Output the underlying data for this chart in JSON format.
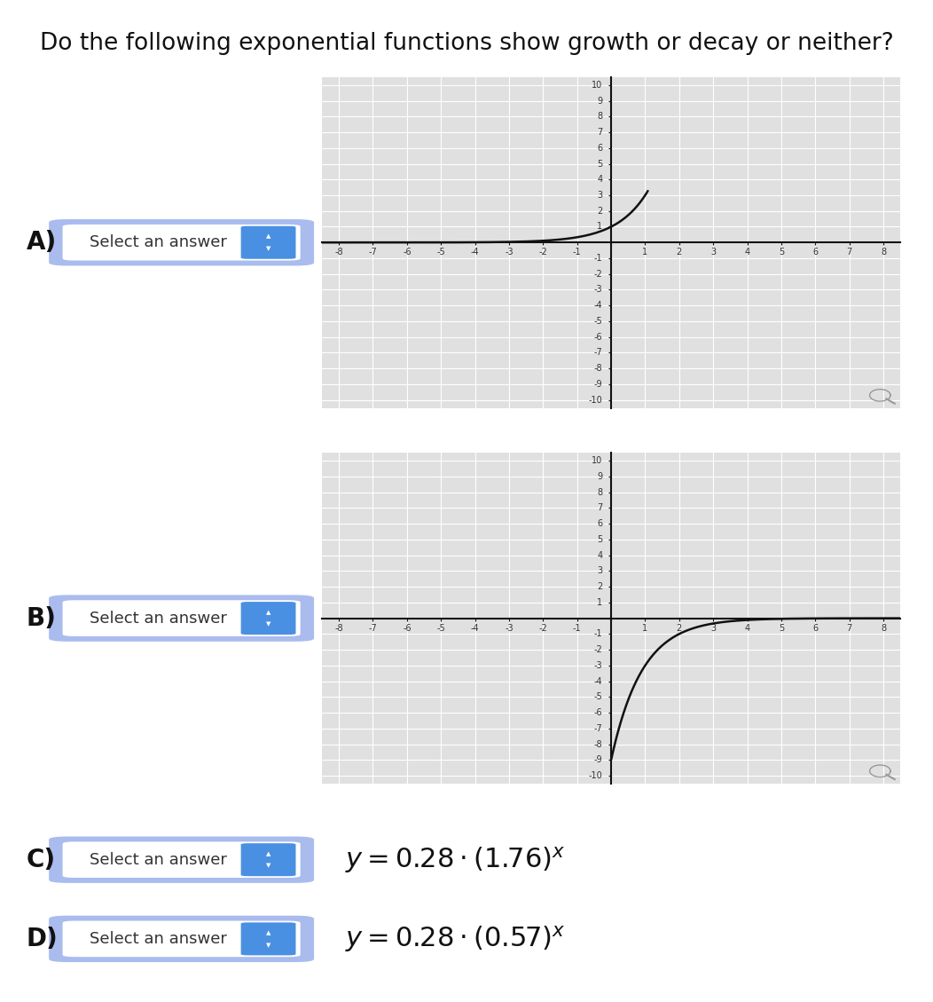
{
  "title": "Do the following exponential functions show growth or decay or neither?",
  "title_fontsize": 19,
  "bg_color": "#ffffff",
  "graph_bg_color": "#e0e0e0",
  "grid_color": "#ffffff",
  "axis_color": "#111111",
  "curve_color": "#111111",
  "curve_linewidth": 1.8,
  "xlim": [
    -8.5,
    8.5
  ],
  "ylim": [
    -10.5,
    10.5
  ],
  "xticks": [
    -8,
    -7,
    -6,
    -5,
    -4,
    -3,
    -2,
    -1,
    0,
    1,
    2,
    3,
    4,
    5,
    6,
    7,
    8
  ],
  "yticks": [
    -10,
    -9,
    -8,
    -7,
    -6,
    -5,
    -4,
    -3,
    -2,
    -1,
    0,
    1,
    2,
    3,
    4,
    5,
    6,
    7,
    8,
    9,
    10
  ],
  "chart_A_base": 3.0,
  "chart_B_base": 3.0,
  "select_label": "Select an answer",
  "button_border_color": "#aabcee",
  "button_fill_color": "#ffffff",
  "arrow_bg_color": "#4a90e2",
  "label_A": "A)",
  "label_B": "B)",
  "label_C": "C)",
  "label_D": "D)",
  "formula_C": "$y = 0.28 \\cdot (1.76)^{x}$",
  "formula_D": "$y = 0.28 \\cdot (0.57)^{x}$",
  "label_fontsize": 20,
  "select_fontsize": 13,
  "formula_fontsize": 22
}
